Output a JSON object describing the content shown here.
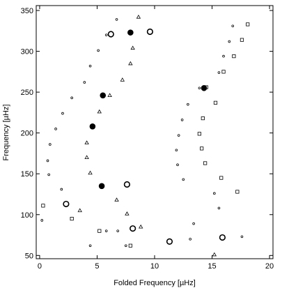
{
  "chart_data": {
    "type": "scatter",
    "title": "",
    "xlabel": "Folded Frequency [µHz]",
    "ylabel": "Frequency [µHz]",
    "xlim": [
      -0.3,
      20.3
    ],
    "ylim": [
      46,
      356
    ],
    "xticks": [
      0,
      5,
      10,
      15,
      20
    ],
    "yticks": [
      50,
      100,
      150,
      200,
      250,
      300,
      350
    ],
    "xtick_labels": [
      "0",
      "5",
      "10",
      "15",
      "20"
    ],
    "ytick_labels": [
      "50",
      "100",
      "150",
      "200",
      "250",
      "300",
      "350"
    ],
    "grid": false,
    "legend": false,
    "series": [
      {
        "marker": "small-open-circle",
        "points": [
          [
            0.2,
            93
          ],
          [
            1.9,
            131
          ],
          [
            0.8,
            149
          ],
          [
            0.7,
            166
          ],
          [
            0.9,
            186
          ],
          [
            1.4,
            205
          ],
          [
            2.0,
            224
          ],
          [
            2.8,
            243
          ],
          [
            3.9,
            262
          ],
          [
            4.4,
            282
          ],
          [
            5.1,
            301
          ],
          [
            5.8,
            320
          ],
          [
            6.7,
            339
          ],
          [
            5.8,
            80
          ],
          [
            6.8,
            80
          ],
          [
            4.4,
            62
          ],
          [
            7.5,
            62
          ],
          [
            13.1,
            70
          ],
          [
            17.6,
            73
          ],
          [
            13.4,
            89
          ],
          [
            15.6,
            108
          ],
          [
            15.2,
            126
          ],
          [
            12.5,
            143
          ],
          [
            12.0,
            161
          ],
          [
            11.9,
            179
          ],
          [
            12.1,
            197
          ],
          [
            12.4,
            216
          ],
          [
            12.9,
            235
          ],
          [
            13.9,
            255
          ],
          [
            15.6,
            274
          ],
          [
            16.0,
            294
          ],
          [
            16.5,
            312
          ],
          [
            16.8,
            331
          ]
        ]
      },
      {
        "marker": "triangle",
        "points": [
          [
            3.5,
            105
          ],
          [
            7.6,
            101
          ],
          [
            8.8,
            85
          ],
          [
            6.7,
            118
          ],
          [
            4.4,
            151
          ],
          [
            4.1,
            170
          ],
          [
            4.1,
            188
          ],
          [
            4.6,
            207
          ],
          [
            5.2,
            226
          ],
          [
            6.1,
            246
          ],
          [
            7.2,
            265
          ],
          [
            7.9,
            285
          ],
          [
            8.1,
            304
          ],
          [
            8.6,
            342
          ],
          [
            15.2,
            51
          ]
        ]
      },
      {
        "marker": "square",
        "points": [
          [
            0.3,
            111
          ],
          [
            2.8,
            95
          ],
          [
            5.2,
            80
          ],
          [
            7.9,
            62
          ],
          [
            17.2,
            128
          ],
          [
            15.8,
            145
          ],
          [
            14.4,
            163
          ],
          [
            14.1,
            181
          ],
          [
            13.9,
            199
          ],
          [
            14.2,
            218
          ],
          [
            15.3,
            237
          ],
          [
            14.5,
            256
          ],
          [
            16.0,
            275
          ],
          [
            16.9,
            294
          ],
          [
            17.6,
            314
          ],
          [
            18.1,
            333
          ]
        ]
      },
      {
        "marker": "large-open-circle",
        "points": [
          [
            2.3,
            113
          ],
          [
            7.6,
            137
          ],
          [
            6.2,
            321
          ],
          [
            9.6,
            324
          ],
          [
            8.1,
            83
          ],
          [
            11.3,
            67
          ],
          [
            15.9,
            72
          ]
        ]
      },
      {
        "marker": "filled-circle",
        "points": [
          [
            5.4,
            135
          ],
          [
            4.6,
            208
          ],
          [
            5.5,
            246
          ],
          [
            14.3,
            255
          ],
          [
            7.9,
            323
          ]
        ]
      }
    ]
  }
}
